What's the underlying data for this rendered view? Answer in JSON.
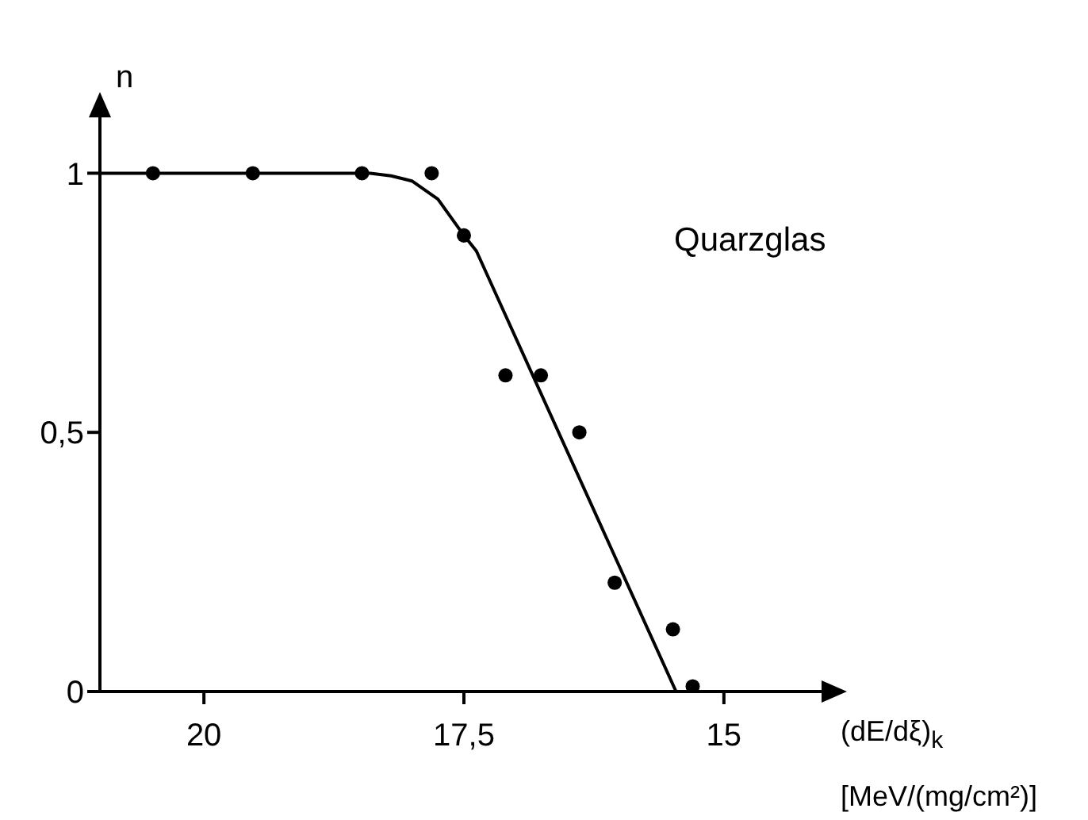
{
  "chart_data": {
    "type": "scatter",
    "xlabel": "(dE/dξ)$_{k}$ [MeV/(mg/cm²)]",
    "ylabel": "n",
    "annotations": [
      "Quarzglas"
    ],
    "series": [
      {
        "type": "scatter",
        "color": "#000000",
        "x": [
          20.49,
          19.53,
          18.48,
          17.81,
          17.5,
          17.1,
          16.76,
          16.39,
          16.05,
          15.49,
          15.3
        ],
        "values": [
          1.0,
          1.0,
          1.0,
          1.0,
          0.88,
          0.61,
          0.61,
          0.5,
          0.21,
          0.12,
          0.01
        ]
      },
      {
        "type": "line",
        "color": "#000000",
        "marker": "none",
        "x": [
          21,
          18.4,
          18.2,
          18.0,
          17.75,
          17.5,
          17.38,
          15.46
        ],
        "values": [
          1,
          1,
          0.995,
          0.985,
          0.95,
          0.88,
          0.85,
          0
        ]
      }
    ],
    "xlim": [
      21,
      14
    ],
    "xticks": [
      {
        "value": 20,
        "label": "20"
      },
      {
        "value": 17.5,
        "label": "17,5"
      },
      {
        "value": 15,
        "label": "15"
      }
    ],
    "ylim": [
      0,
      1.12
    ],
    "yticks": [
      {
        "value": 0,
        "label": "0"
      },
      {
        "value": 0.5,
        "label": "0,5"
      },
      {
        "value": 1,
        "label": "1"
      }
    ],
    "marker": "circle",
    "grid": false
  }
}
